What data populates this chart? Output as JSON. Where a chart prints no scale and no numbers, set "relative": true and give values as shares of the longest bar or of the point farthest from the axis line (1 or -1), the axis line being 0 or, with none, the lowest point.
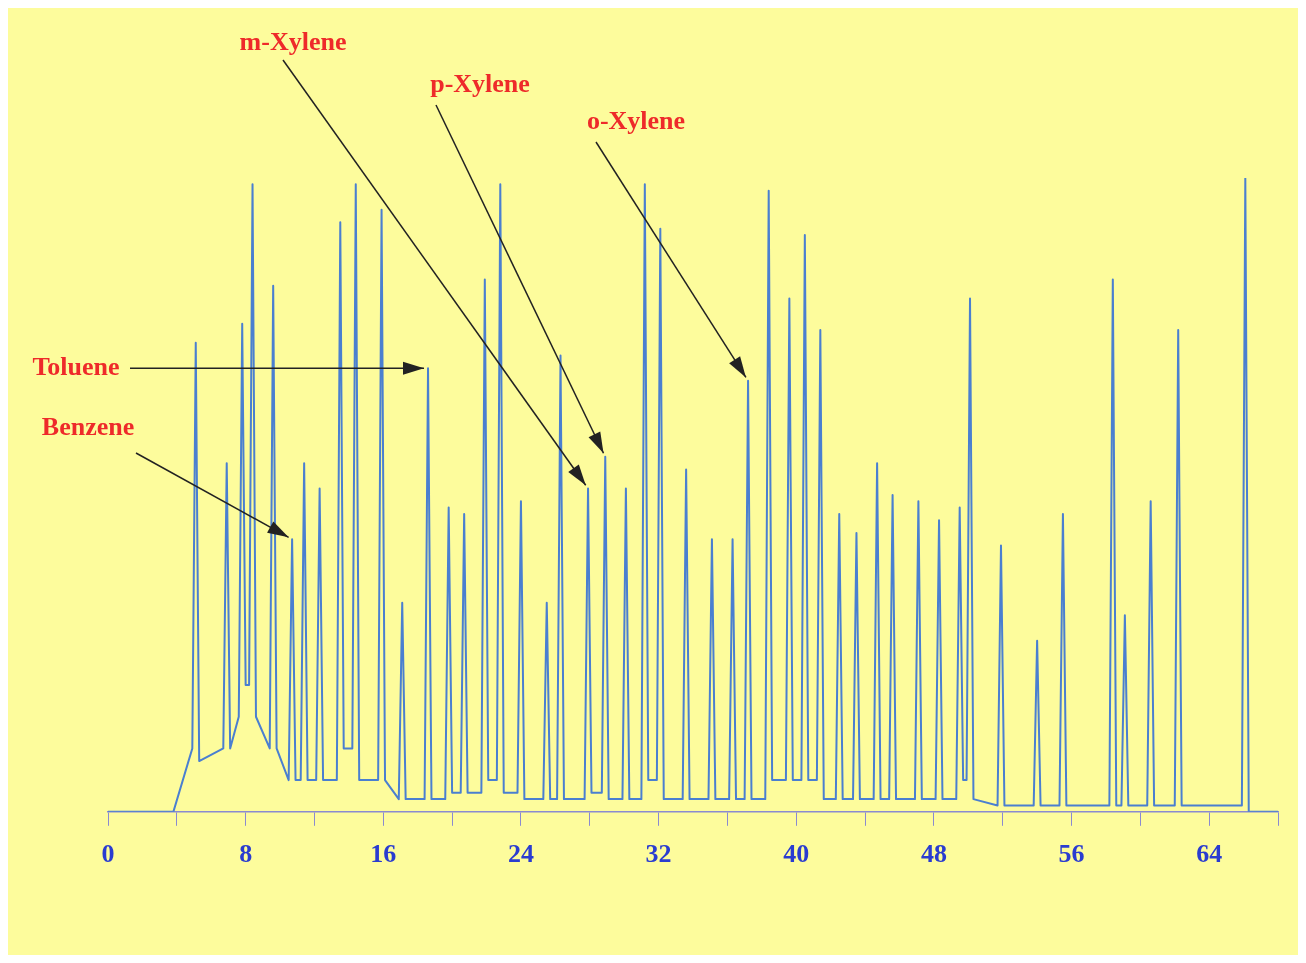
{
  "chart_data": {
    "type": "line",
    "relative": true,
    "grid": false,
    "legend": false,
    "marker": "none",
    "xlim": [
      0,
      68
    ],
    "xticks": [
      0,
      {
        "value": 4,
        "label": null
      },
      8,
      {
        "value": 12,
        "label": null
      },
      16,
      {
        "value": 20,
        "label": null
      },
      24,
      {
        "value": 28,
        "label": null
      },
      32,
      {
        "value": 36,
        "label": null
      },
      40,
      {
        "value": 44,
        "label": null
      },
      48,
      {
        "value": 52,
        "label": null
      },
      56,
      {
        "value": 60,
        "label": null
      },
      64,
      {
        "value": 68,
        "label": null
      }
    ],
    "annotations": [
      {
        "text": "m-Xylene",
        "x": 27.9,
        "y": 0.51
      },
      {
        "text": "p-Xylene",
        "x": 28.9,
        "y": 0.56
      },
      {
        "text": "o-Xylene",
        "x": 37.2,
        "y": 0.68
      },
      {
        "text": "Toluene",
        "x": 18.6,
        "y": 0.7
      },
      {
        "text": "Benzene",
        "x": 10.7,
        "y": 0.43
      }
    ],
    "series": [
      {
        "color": "#4a7fd0",
        "x": [
          0,
          3.8,
          4.9,
          5.1,
          5.3,
          6.7,
          6.9,
          7.1,
          7.6,
          7.8,
          8.0,
          8.2,
          8.4,
          8.6,
          9.4,
          9.6,
          9.8,
          10.5,
          10.7,
          10.9,
          11.2,
          11.4,
          11.6,
          12.1,
          12.3,
          12.5,
          13.3,
          13.5,
          13.7,
          14.2,
          14.4,
          14.6,
          15.7,
          15.9,
          16.1,
          16.9,
          17.1,
          17.3,
          18.4,
          18.6,
          18.8,
          19.6,
          19.8,
          20.0,
          20.5,
          20.7,
          20.9,
          21.7,
          21.9,
          22.1,
          22.6,
          22.8,
          23.0,
          23.8,
          24.0,
          24.2,
          25.3,
          25.5,
          25.7,
          26.1,
          26.3,
          26.5,
          27.7,
          27.9,
          28.1,
          28.7,
          28.9,
          29.1,
          29.9,
          30.1,
          30.3,
          31.0,
          31.2,
          31.4,
          31.9,
          32.1,
          32.3,
          33.4,
          33.6,
          33.8,
          34.9,
          35.1,
          35.3,
          36.1,
          36.3,
          36.5,
          37.0,
          37.2,
          37.4,
          38.2,
          38.4,
          38.6,
          39.4,
          39.6,
          39.8,
          40.3,
          40.5,
          40.7,
          41.2,
          41.4,
          41.6,
          42.3,
          42.5,
          42.7,
          43.3,
          43.5,
          43.7,
          44.5,
          44.7,
          44.9,
          45.4,
          45.6,
          45.8,
          46.9,
          47.1,
          47.3,
          48.1,
          48.3,
          48.5,
          49.3,
          49.5,
          49.7,
          49.9,
          50.1,
          50.3,
          51.7,
          51.9,
          52.1,
          53.8,
          54.0,
          54.2,
          55.3,
          55.5,
          55.7,
          58.2,
          58.4,
          58.6,
          58.9,
          59.1,
          59.3,
          60.4,
          60.6,
          60.8,
          62.0,
          62.2,
          62.4,
          65.9,
          66.1,
          66.3,
          68
        ],
        "values": [
          0,
          0,
          0.1,
          0.74,
          0.08,
          0.1,
          0.55,
          0.1,
          0.15,
          0.77,
          0.2,
          0.2,
          0.99,
          0.15,
          0.1,
          0.83,
          0.1,
          0.05,
          0.43,
          0.05,
          0.05,
          0.55,
          0.05,
          0.05,
          0.51,
          0.05,
          0.05,
          0.93,
          0.1,
          0.1,
          0.99,
          0.05,
          0.05,
          0.95,
          0.05,
          0.02,
          0.33,
          0.02,
          0.02,
          0.7,
          0.02,
          0.02,
          0.48,
          0.03,
          0.03,
          0.47,
          0.03,
          0.03,
          0.84,
          0.05,
          0.05,
          0.99,
          0.03,
          0.03,
          0.49,
          0.02,
          0.02,
          0.33,
          0.02,
          0.02,
          0.72,
          0.02,
          0.02,
          0.51,
          0.03,
          0.03,
          0.56,
          0.02,
          0.02,
          0.51,
          0.02,
          0.02,
          0.99,
          0.05,
          0.05,
          0.92,
          0.02,
          0.02,
          0.54,
          0.02,
          0.02,
          0.43,
          0.02,
          0.02,
          0.43,
          0.02,
          0.02,
          0.68,
          0.02,
          0.02,
          0.98,
          0.05,
          0.05,
          0.81,
          0.05,
          0.05,
          0.91,
          0.05,
          0.05,
          0.76,
          0.02,
          0.02,
          0.47,
          0.02,
          0.02,
          0.44,
          0.02,
          0.02,
          0.55,
          0.02,
          0.02,
          0.5,
          0.02,
          0.02,
          0.49,
          0.02,
          0.02,
          0.46,
          0.02,
          0.02,
          0.48,
          0.05,
          0.05,
          0.81,
          0.02,
          0.01,
          0.42,
          0.01,
          0.01,
          0.27,
          0.01,
          0.01,
          0.47,
          0.01,
          0.01,
          0.84,
          0.01,
          0.01,
          0.31,
          0.01,
          0.01,
          0.49,
          0.01,
          0.01,
          0.76,
          0.01,
          0.01,
          1,
          0,
          0
        ]
      }
    ]
  }
}
